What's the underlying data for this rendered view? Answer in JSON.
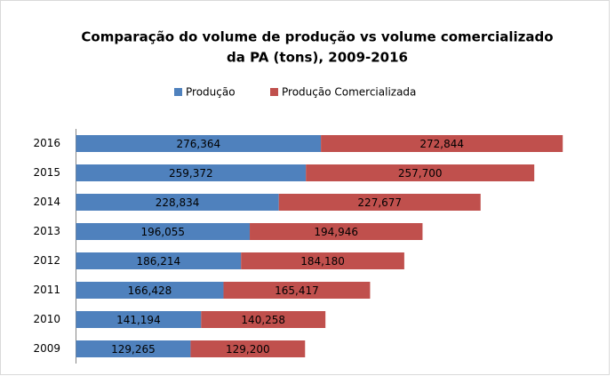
{
  "chart_data": {
    "type": "stacked-bar-horizontal",
    "title": [
      "Comparação do volume de produção vs volume comercializado",
      "da PA (tons), 2009-2016"
    ],
    "categories": [
      "2009",
      "2010",
      "2011",
      "2012",
      "2013",
      "2014",
      "2015",
      "2016"
    ],
    "series": [
      {
        "name": "Produção",
        "color": "#4f81bd",
        "values": [
          129265,
          141194,
          166428,
          186214,
          196055,
          228834,
          259372,
          276364
        ],
        "value_labels": [
          "129,265",
          "141,194",
          "166,428",
          "186,214",
          "196,055",
          "228,834",
          "259,372",
          "276,364"
        ]
      },
      {
        "name": "Produção Comercializada",
        "color": "#c0504d",
        "values": [
          129200,
          140258,
          165417,
          184180,
          194946,
          227677,
          257700,
          272844
        ],
        "value_labels": [
          "129,200",
          "140,258",
          "165,417",
          "184,180",
          "194,946",
          "227,677",
          "257,700",
          "272,844"
        ]
      }
    ],
    "xlim": [
      0,
      550000
    ],
    "legend": "top"
  }
}
